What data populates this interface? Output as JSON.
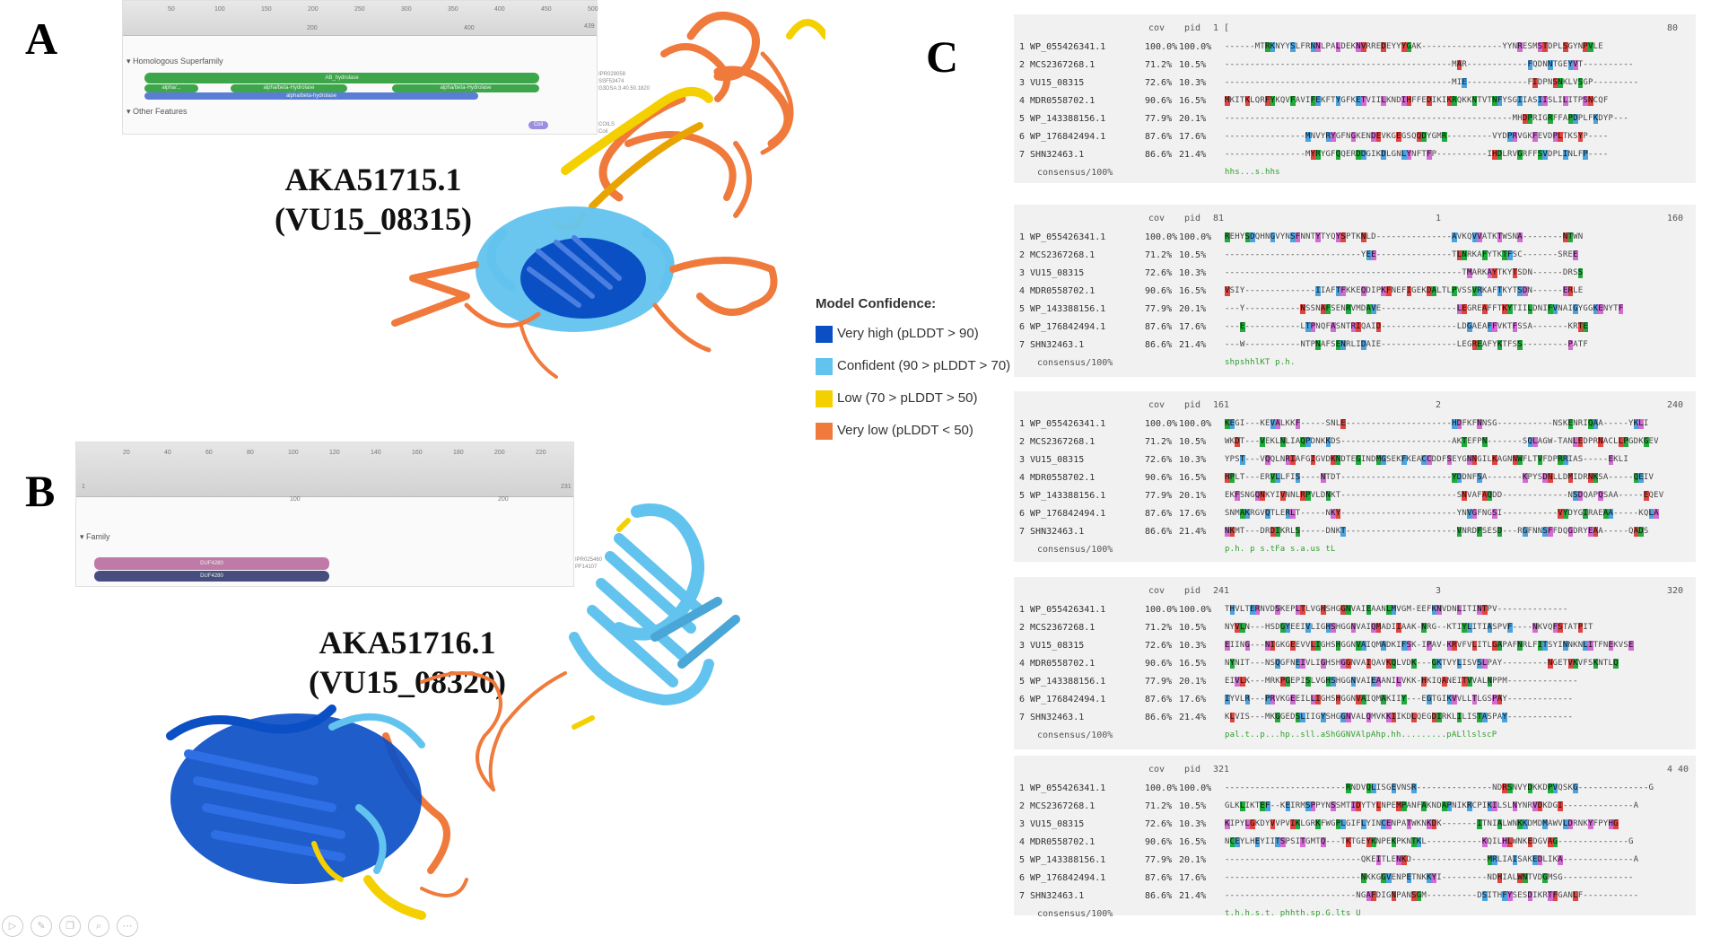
{
  "panels": {
    "a_letter": "A",
    "b_letter": "B",
    "c_letter": "C"
  },
  "protein_a": {
    "name": "AKA51715.1",
    "locus": "(VU15_08315)",
    "interpro": {
      "ticks": [
        "50",
        "100",
        "150",
        "200",
        "250",
        "300",
        "350",
        "400",
        "450",
        "500"
      ],
      "subticks": [
        "200",
        "400"
      ],
      "end_tick": "439",
      "section1": "Homologous Superfamily",
      "section2": "Other Features",
      "bar_labels": [
        "AB_hydrolase",
        "alpha/...",
        "alpha/beta-Hydrolase",
        "alpha/beta-Hydrolase",
        "alpha/beta-hydrolase"
      ],
      "side_ids": [
        "IPR029058",
        "SSF53474",
        "G3DSA:3.40.50.1820"
      ],
      "coil_label": "Coil",
      "coil_id": "COILS Coil"
    }
  },
  "protein_b": {
    "name": "AKA51716.1",
    "locus": "(VU15_08320)",
    "interpro": {
      "ticks": [
        "20",
        "40",
        "60",
        "80",
        "100",
        "120",
        "140",
        "160",
        "180",
        "200",
        "220"
      ],
      "subticks": [
        "100",
        "200"
      ],
      "start_tick": "1",
      "end_tick": "231",
      "section": "Family",
      "bar_labels": [
        "DUF4280",
        "DUF4280"
      ],
      "side_ids": [
        "IPR025460",
        "PF14107"
      ]
    }
  },
  "legend": {
    "title": "Model Confidence:",
    "items": [
      {
        "label": "Very high (pLDDT > 90)",
        "color": "#0b4fc5"
      },
      {
        "label": "Confident (90 > pLDDT > 70)",
        "color": "#62c3ee"
      },
      {
        "label": "Low (70 > pLDDT > 50)",
        "color": "#f5d000"
      },
      {
        "label": "Very low (pLDDT < 50)",
        "color": "#f07a3c"
      }
    ]
  },
  "alignment": {
    "col_cov": "cov",
    "col_pid": "pid",
    "rows": [
      {
        "idx": "1",
        "id": "WP_055426341.1",
        "cov": "100.0%",
        "pid": "100.0%"
      },
      {
        "idx": "2",
        "id": "MCS2367268.1",
        "cov": "71.2%",
        "pid": "10.5%"
      },
      {
        "idx": "3",
        "id": "VU15_08315",
        "cov": "72.6%",
        "pid": "10.3%"
      },
      {
        "idx": "4",
        "id": "MDR0558702.1",
        "cov": "90.6%",
        "pid": "16.5%"
      },
      {
        "idx": "5",
        "id": "WP_143388156.1",
        "cov": "77.9%",
        "pid": "20.1%"
      },
      {
        "idx": "6",
        "id": "WP_176842494.1",
        "cov": "87.6%",
        "pid": "17.6%"
      },
      {
        "idx": "7",
        "id": "SHN32463.1",
        "cov": "86.6%",
        "pid": "21.4%"
      }
    ],
    "consensus_label": "consensus/100%",
    "blocks": [
      {
        "start": "1 [",
        "mid": "",
        "end": "80",
        "seqs": [
          "------MTRKNYYSLFRNNLPALDEKNVRREDEYYYGAK----------------YYNRESMSTDPLSGYNPVLE",
          "---------------------------------------------MAR------------FQDNNTGEYVT----------",
          "---------------------------------------------MIE------------FIDPNSNKLVSGP---------",
          "MKITKLQRFYKQVFAVIFEKFTYGFKETVIILKNDIHFFEDIKIKRQKKNTVTNFYSGIIASIISLILITPSNCQF",
          "---------------------------------------------------------MHDPRIGRFFAPDPLFKDYP---",
          "----------------MNVYRYGFNGKENDEVKGEGSQQDYGMR---------VYDPRVGKFEVDPLTKSYP----",
          "----------------MYRYGFQQERDDGIKDLGNLYNFTFP----------IHDLRVGRFFSVDPLINLFP----"
        ],
        "consensus": "                                                           hhs...s.hhs"
      },
      {
        "start": "81",
        "mid": "1",
        "end": "160",
        "seqs": [
          "REHYSDQHNGVYNSFNNTYTYQYSPTKNLD---------------AVKQVVATKTWSNA--------NTWN",
          "---------------------------YEE---------------TLNRKAFYTKTFSC-------SREE",
          "-----------------------------------------------TMARKAYTKYTSDN------DRSS",
          "VSIY--------------IIAFTFKKEQDIPKFNEFIGEKDALTLPVSSVRKAFTKYTSDN------ERLE",
          "---Y-----------NSSNAFSENRVMDAVE---------------LEGREAFFTKYTIILDNIFVNAIGYGGKENYTF",
          "---E-----------LTPNQFASNTRIQAID---------------LDGAEAFFVKTFSSA-------KRTE",
          "---W-----------NTPNAFSENRLIDAIE---------------LEGREAFYKTFSS---------PATF"
        ],
        "consensus": "                                              shpshhlKT             p.h."
      },
      {
        "start": "161",
        "mid": "2",
        "end": "240",
        "seqs": [
          "KEGI---KEVALKKF-----SNLE---------------------HDFKFNNSG-----------NSKENRIQAA-----YKLI",
          "WKDT---VEKLNLIAQPDNKKDS----------------------AKTEFPN-------SQLAGW-TANLEDPRNACLLPGDKGEV",
          "YPST---VQQLNRIAFGIGVDKNDTEGINDMGSEKFKEACCDDFSEYGNNGILKAGNNWFLTVFDPRRIAS-----EKLI",
          "HPLT---ERVLLFIS----NTDT----------------------YDDNFSA-------KPYSDNLLDMIDRNKSA-----QEIV",
          "EKFSNGQNKYIVNNLRPVLDNKT-----------------------SNVAFAQDD-------------NSDQAPQSAA-----EQEV",
          "SNMAKRGVQTLERLT-----NKY-----------------------YNVGFNGSI-----------VYDYGIRAEAA-----KQLA",
          "NKMT---DRDIKRLS-----DNKT----------------------VNRDFSESD---RGFNNSFFDQGDRYEAA-----QADS"
        ],
        "consensus": "            p.h.       p               s.tFa            s.a.us      tL"
      },
      {
        "start": "241",
        "mid": "3",
        "end": "320",
        "seqs": [
          "THVLTERNVDSKEPLTLVGHSHGGNVAIEAANLMVGM-EEFKNVDNLITINTPV--------------",
          "NYVLN---HSDGYEEIVLIGHSHGGNVAIQMADIIAAK-NRG--KTIYLITIASPVF----NKVQFSTATPIT",
          "EIING---NIGKGEEVVLIGHSHGGNVAIQMADKIFSK-IPAV-KRVFVLITLGAPAFNRLFITSYINNKNLITFNEKVSE",
          "NYNIT---NSQGFNEIVLIGHSHGGNVAIQAVKQLVDK---GKTVYLISVSLPAY---------NGETVKVFSKNTLQ",
          "EIVLK---MRKPGEPISLVGHSHGGNVAIEAANILVKK-HKIQANEITVVALNPPM--------------",
          "IYVLR---PRVKGEEILLIGHSHGGNVAIQMAKIIY---EGTGIKVVLLTLGSPAY-------------",
          "KLVIS---MKGGEDSLIIGYSHGGNVALQMVKKIIKDLQEGDIRKLILISTASPAY-------------"
        ],
        "consensus": "pal.t..p...hp..sll.aShGGNVAlpAhp.hh.........pALllslscP"
      },
      {
        "start": "321",
        "mid": "",
        "end": "4 40",
        "seqs": [
          "------------------------RNDVQLISGEVNSR---------------NDRSNVYDKKDPVQSKG--------------G",
          "GLKLIKTEF--KEIRMSPPYNSSMTIDYTYLNPEMPANFAKNDAPNIKRCPIKILSLNYNRVDKDGI--------------A",
          "KIPYLGKDYVVPVIKLGRKFWGPLGIFLYINCENPATWKNKDK-------ITNIALWNKKDMDMAWVLDRNKYFPYHG",
          "NCEYLHEYIITSPSITGMTQ---TKTGEYKNPEKPKNTKL-----------KQILHLWNKEDGVAG--------------G",
          "---------------------------QKEITLENKD---------------MRLIAISAKEDLIKA--------------A",
          "---------------------------NKKGGVENPETNKKYI---------NDHIALWNTVDGMSG--------------",
          "--------------------------NGAFDIGNPANSGM----------DSITHFYSESDIKRTFGANLF-----------"
        ],
        "consensus": "                        t.h.h.s.t.              phhth.sp.G.lts                U"
      }
    ]
  },
  "toolbar": [
    "play-icon",
    "pen-icon",
    "copy-icon",
    "zoom-icon",
    "more-icon"
  ]
}
